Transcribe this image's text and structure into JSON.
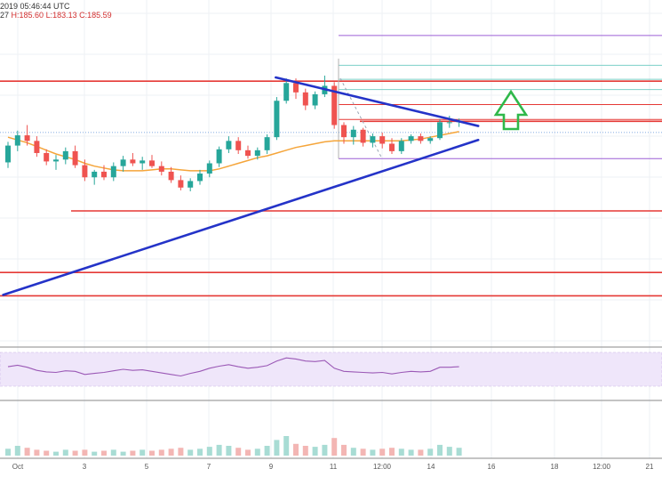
{
  "header": {
    "timestamp": "2019 05:46:44 UTC",
    "open_tail": "27",
    "high": "H:185.60",
    "low": "L:183.13",
    "close": "C:185.59"
  },
  "colors": {
    "bull": "#26a69a",
    "bear": "#ef5350",
    "ma": "#f5a53a",
    "trend": "#2433c8",
    "hline": "#e53935",
    "fib_purple": "#9c5fd6",
    "fib_teal": "#7dd0c8",
    "rsi": "#9b59b6",
    "arrow": "#2fb84a"
  },
  "chart_data": {
    "type": "candlestick",
    "x_tick_labels": [
      "Oct",
      "3",
      "5",
      "7",
      "9",
      "11",
      "12:00",
      "14",
      "16",
      "18",
      "12:00",
      "21"
    ],
    "candles": [
      [
        186.6,
        188.8,
        186.0,
        188.4
      ],
      [
        188.4,
        190.0,
        187.8,
        189.5
      ],
      [
        189.5,
        190.6,
        188.4,
        188.9
      ],
      [
        188.9,
        189.4,
        187.2,
        187.6
      ],
      [
        187.6,
        188.0,
        186.3,
        186.7
      ],
      [
        186.7,
        187.4,
        185.8,
        186.9
      ],
      [
        186.9,
        188.2,
        186.4,
        187.8
      ],
      [
        187.8,
        188.4,
        186.0,
        186.3
      ],
      [
        186.3,
        186.9,
        184.6,
        185.0
      ],
      [
        185.0,
        185.8,
        184.2,
        185.6
      ],
      [
        185.6,
        186.3,
        184.7,
        185.0
      ],
      [
        185.0,
        186.6,
        184.6,
        186.2
      ],
      [
        186.2,
        187.3,
        185.6,
        186.9
      ],
      [
        186.9,
        187.6,
        186.2,
        186.5
      ],
      [
        186.5,
        187.2,
        185.8,
        186.8
      ],
      [
        186.8,
        187.4,
        186.0,
        186.2
      ],
      [
        186.2,
        186.7,
        185.2,
        185.6
      ],
      [
        185.6,
        186.1,
        184.4,
        184.7
      ],
      [
        184.7,
        185.2,
        183.6,
        183.9
      ],
      [
        183.9,
        184.9,
        183.5,
        184.6
      ],
      [
        184.6,
        185.8,
        184.2,
        185.4
      ],
      [
        185.4,
        186.8,
        185.0,
        186.5
      ],
      [
        186.5,
        188.3,
        186.1,
        188.0
      ],
      [
        188.0,
        189.4,
        187.6,
        188.9
      ],
      [
        188.9,
        189.3,
        187.5,
        187.9
      ],
      [
        187.9,
        188.4,
        187.0,
        187.3
      ],
      [
        187.3,
        188.2,
        186.9,
        187.9
      ],
      [
        187.9,
        189.6,
        187.5,
        189.3
      ],
      [
        189.3,
        193.6,
        189.0,
        193.2
      ],
      [
        193.2,
        195.6,
        192.9,
        195.1
      ],
      [
        195.1,
        195.6,
        193.4,
        194.1
      ],
      [
        194.1,
        194.5,
        192.2,
        192.7
      ],
      [
        192.7,
        194.2,
        192.3,
        193.9
      ],
      [
        193.9,
        195.9,
        193.6,
        194.8
      ],
      [
        194.8,
        195.2,
        190.2,
        190.6
      ],
      [
        190.6,
        190.9,
        188.6,
        189.3
      ],
      [
        189.3,
        190.5,
        188.5,
        190.1
      ],
      [
        190.1,
        190.3,
        188.3,
        188.7
      ],
      [
        188.7,
        189.7,
        188.2,
        189.4
      ],
      [
        189.4,
        189.8,
        188.1,
        188.6
      ],
      [
        188.6,
        189.2,
        187.5,
        187.8
      ],
      [
        187.8,
        189.2,
        187.5,
        188.9
      ],
      [
        188.9,
        189.6,
        188.6,
        189.4
      ],
      [
        189.4,
        189.7,
        188.6,
        188.9
      ],
      [
        188.9,
        189.4,
        188.6,
        189.2
      ],
      [
        189.2,
        191.2,
        189.0,
        190.9
      ],
      [
        190.9,
        191.6,
        190.3,
        190.9
      ],
      [
        190.9,
        191.3,
        190.4,
        191.0
      ]
    ],
    "ma_values": [
      189.3,
      189.0,
      188.7,
      188.3,
      187.9,
      187.5,
      187.2,
      186.9,
      186.5,
      186.2,
      186.0,
      185.8,
      185.7,
      185.7,
      185.7,
      185.8,
      185.9,
      185.9,
      185.8,
      185.7,
      185.7,
      185.7,
      185.9,
      186.2,
      186.5,
      186.8,
      187.1,
      187.3,
      187.6,
      187.9,
      188.2,
      188.4,
      188.6,
      188.8,
      188.9,
      188.9,
      188.9,
      188.9,
      188.9,
      188.9,
      188.9,
      188.9,
      189.0,
      189.1,
      189.3,
      189.5,
      189.7,
      189.9
    ],
    "rsi_values": [
      55,
      58,
      54,
      48,
      45,
      44,
      47,
      46,
      40,
      42,
      44,
      47,
      50,
      48,
      49,
      46,
      43,
      40,
      37,
      42,
      46,
      52,
      56,
      59,
      55,
      52,
      54,
      57,
      66,
      72,
      70,
      66,
      65,
      67,
      52,
      46,
      45,
      44,
      43,
      44,
      41,
      44,
      46,
      45,
      46,
      54,
      54,
      55
    ],
    "volume_values": [
      0.35,
      0.5,
      0.4,
      0.3,
      0.25,
      0.2,
      0.3,
      0.25,
      0.3,
      0.2,
      0.25,
      0.3,
      0.2,
      0.25,
      0.3,
      0.25,
      0.3,
      0.35,
      0.4,
      0.3,
      0.35,
      0.45,
      0.55,
      0.5,
      0.4,
      0.3,
      0.35,
      0.5,
      0.8,
      1.0,
      0.6,
      0.5,
      0.45,
      0.55,
      0.9,
      0.55,
      0.4,
      0.35,
      0.3,
      0.35,
      0.4,
      0.35,
      0.3,
      0.3,
      0.35,
      0.55,
      0.45,
      0.4
    ],
    "horizontal_levels": [
      195.3,
      191.0,
      181.4,
      174.8,
      172.3
    ],
    "fib_levels": [
      200.2,
      197.0,
      195.5,
      194.4,
      192.8,
      191.2,
      187.0
    ],
    "trendlines": [
      {
        "from": [
          -0.5,
          172.4
        ],
        "to": [
          49.0,
          189.0
        ]
      },
      {
        "from": [
          27.9,
          195.7
        ],
        "to": [
          49.0,
          190.5
        ]
      }
    ],
    "ylim": [
      167,
      204
    ],
    "grid": true
  }
}
